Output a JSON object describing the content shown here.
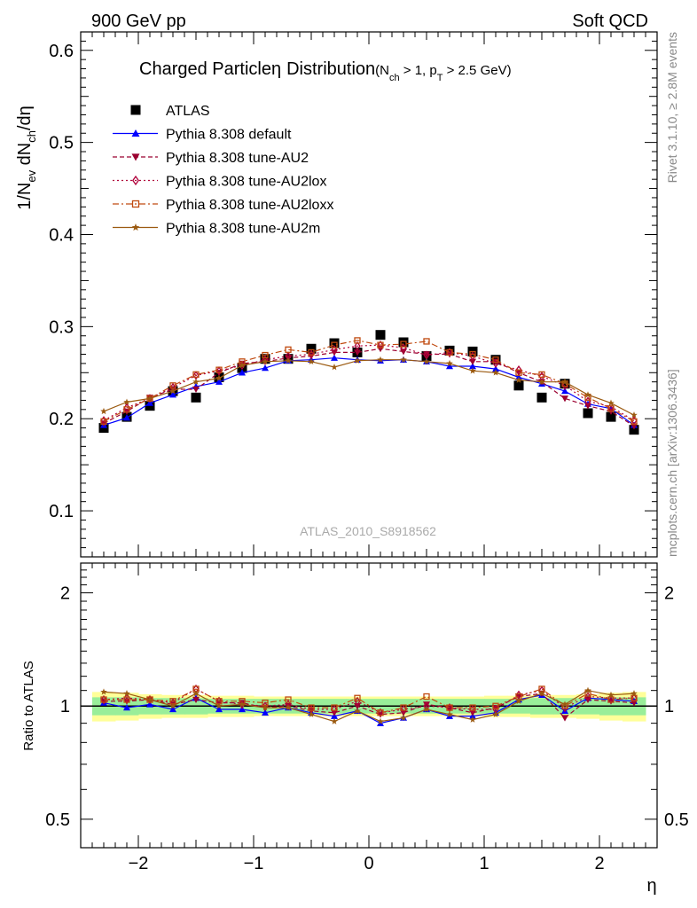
{
  "header": {
    "left": "900 GeV pp",
    "right": "Soft QCD"
  },
  "side": {
    "rivet": "Rivet 3.1.10, ≥ 2.8M events",
    "mcplots": "mcplots.cern.ch [arXiv:1306.3436]"
  },
  "title": {
    "main": "Charged Particle",
    "eta": "η",
    "dist": "Distribution",
    "cond": "(N",
    "cond_sub": "ch",
    "cond2": " > 1, p",
    "cond2_sub": "T",
    "cond3": " > 2.5 GeV)"
  },
  "watermark": "ATLAS_2010_S8918562",
  "ylabel": {
    "a": "1/N",
    "a_sub": "ev",
    "b": " dN",
    "b_sub": "ch",
    "c": "/dη"
  },
  "ratio_ylabel": "Ratio to ATLAS",
  "xlabel": "η",
  "colors": {
    "atlas": "#000000",
    "default": "#0000ff",
    "au2": "#9b0030",
    "au2lox": "#b0003a",
    "au2loxx": "#c04a10",
    "au2m": "#9b5a10",
    "band_inner": "#99ee99",
    "band_outer": "#ffff99"
  },
  "chart_data": [
    {
      "type": "scatter",
      "panel": "main",
      "x": [
        -2.3,
        -2.1,
        -1.9,
        -1.7,
        -1.5,
        -1.3,
        -1.1,
        -0.9,
        -0.7,
        -0.5,
        -0.3,
        -0.1,
        0.1,
        0.3,
        0.5,
        0.7,
        0.9,
        1.1,
        1.3,
        1.5,
        1.7,
        1.9,
        2.1,
        2.3
      ],
      "xlim": [
        -2.5,
        2.5
      ],
      "ylim": [
        0.05,
        0.62
      ],
      "yticks": [
        0.1,
        0.2,
        0.3,
        0.4,
        0.5,
        0.6
      ],
      "ytick_labels": [
        "0.1",
        "0.2",
        "0.3",
        "0.4",
        "0.5",
        "0.6"
      ],
      "legend_position": "top-left",
      "series": [
        {
          "key": "atlas",
          "name": "ATLAS",
          "marker": "square",
          "line": "none",
          "values": [
            0.19,
            0.202,
            0.214,
            0.23,
            0.223,
            0.245,
            0.255,
            0.265,
            0.265,
            0.276,
            0.282,
            0.272,
            0.291,
            0.283,
            0.268,
            0.274,
            0.273,
            0.264,
            0.236,
            0.223,
            0.238,
            0.206,
            0.202,
            0.188
          ]
        },
        {
          "key": "default",
          "name": "Pythia 8.308 default",
          "marker": "triangle-up",
          "line": "solid",
          "values": [
            0.193,
            0.201,
            0.217,
            0.226,
            0.235,
            0.24,
            0.25,
            0.255,
            0.263,
            0.264,
            0.266,
            0.264,
            0.263,
            0.264,
            0.262,
            0.257,
            0.257,
            0.254,
            0.245,
            0.238,
            0.23,
            0.216,
            0.211,
            0.193
          ]
        },
        {
          "key": "au2",
          "name": "Pythia 8.308 tune-AU2",
          "marker": "triangle-down",
          "line": "dashed",
          "values": [
            0.195,
            0.208,
            0.223,
            0.232,
            0.232,
            0.25,
            0.26,
            0.262,
            0.266,
            0.268,
            0.272,
            0.272,
            0.276,
            0.273,
            0.27,
            0.27,
            0.262,
            0.262,
            0.25,
            0.24,
            0.222,
            0.214,
            0.208,
            0.192
          ]
        },
        {
          "key": "au2lox",
          "name": "Pythia 8.308 tune-AU2lox",
          "marker": "diamond-open",
          "line": "dotted",
          "values": [
            0.198,
            0.212,
            0.222,
            0.234,
            0.247,
            0.252,
            0.258,
            0.264,
            0.268,
            0.27,
            0.275,
            0.279,
            0.28,
            0.277,
            0.269,
            0.272,
            0.268,
            0.26,
            0.253,
            0.246,
            0.236,
            0.219,
            0.213,
            0.198
          ]
        },
        {
          "key": "au2loxx",
          "name": "Pythia 8.308 tune-AU2loxx",
          "marker": "square-open",
          "line": "dashdot",
          "values": [
            0.197,
            0.21,
            0.222,
            0.236,
            0.248,
            0.253,
            0.262,
            0.269,
            0.275,
            0.272,
            0.28,
            0.285,
            0.28,
            0.281,
            0.284,
            0.272,
            0.27,
            0.264,
            0.25,
            0.248,
            0.238,
            0.223,
            0.211,
            0.197
          ]
        },
        {
          "key": "au2m",
          "name": "Pythia 8.308 tune-AU2m",
          "marker": "star",
          "line": "solid",
          "values": [
            0.208,
            0.218,
            0.222,
            0.23,
            0.24,
            0.244,
            0.258,
            0.262,
            0.263,
            0.262,
            0.256,
            0.263,
            0.264,
            0.264,
            0.262,
            0.26,
            0.252,
            0.25,
            0.242,
            0.24,
            0.24,
            0.226,
            0.217,
            0.204
          ]
        }
      ]
    },
    {
      "type": "line",
      "panel": "ratio",
      "ylabel": "Ratio to ATLAS",
      "xlabel": "η",
      "x": [
        -2.3,
        -2.1,
        -1.9,
        -1.7,
        -1.5,
        -1.3,
        -1.1,
        -0.9,
        -0.7,
        -0.5,
        -0.3,
        -0.1,
        0.1,
        0.3,
        0.5,
        0.7,
        0.9,
        1.1,
        1.3,
        1.5,
        1.7,
        1.9,
        2.1,
        2.3
      ],
      "xlim": [
        -2.5,
        2.5
      ],
      "xticks": [
        -2,
        -1,
        0,
        1,
        2
      ],
      "xtick_labels": [
        "−2",
        "−1",
        "0",
        "1",
        "2"
      ],
      "ylim": [
        0.42,
        2.4
      ],
      "log_scale": true,
      "yticks": [
        0.5,
        1,
        2
      ],
      "ytick_labels": [
        "0.5",
        "1",
        "2"
      ],
      "band_inner": [
        0.055,
        0.055,
        0.05,
        0.05,
        0.05,
        0.045,
        0.045,
        0.045,
        0.045,
        0.045,
        0.045,
        0.045,
        0.045,
        0.045,
        0.045,
        0.045,
        0.045,
        0.045,
        0.045,
        0.05,
        0.05,
        0.05,
        0.055,
        0.055
      ],
      "band_outer": [
        0.09,
        0.085,
        0.075,
        0.07,
        0.07,
        0.065,
        0.065,
        0.06,
        0.06,
        0.06,
        0.06,
        0.06,
        0.06,
        0.06,
        0.06,
        0.06,
        0.06,
        0.065,
        0.065,
        0.07,
        0.07,
        0.075,
        0.085,
        0.09
      ],
      "series": [
        {
          "key": "default",
          "values": [
            1.02,
            0.99,
            1.01,
            0.98,
            1.05,
            0.98,
            0.98,
            0.96,
            0.99,
            0.96,
            0.94,
            0.97,
            0.9,
            0.93,
            0.98,
            0.94,
            0.94,
            0.96,
            1.04,
            1.07,
            0.97,
            1.05,
            1.04,
            1.03
          ]
        },
        {
          "key": "au2",
          "values": [
            1.03,
            1.03,
            1.04,
            1.01,
            1.04,
            1.02,
            1.02,
            0.99,
            1.0,
            0.97,
            0.96,
            1.0,
            0.95,
            0.96,
            1.01,
            0.99,
            0.96,
            0.99,
            1.06,
            1.08,
            0.93,
            1.04,
            1.03,
            1.02
          ]
        },
        {
          "key": "au2lox",
          "values": [
            1.04,
            1.05,
            1.04,
            1.02,
            1.11,
            1.03,
            1.01,
            1.0,
            1.01,
            0.98,
            0.98,
            1.03,
            0.96,
            0.98,
            1.0,
            0.99,
            0.98,
            0.98,
            1.07,
            1.1,
            0.99,
            1.06,
            1.05,
            1.05
          ]
        },
        {
          "key": "au2loxx",
          "values": [
            1.04,
            1.04,
            1.04,
            1.03,
            1.11,
            1.03,
            1.03,
            1.02,
            1.04,
            0.99,
            0.99,
            1.05,
            0.96,
            0.99,
            1.06,
            0.99,
            0.99,
            1.0,
            1.06,
            1.11,
            1.0,
            1.08,
            1.04,
            1.05
          ]
        },
        {
          "key": "au2m",
          "values": [
            1.09,
            1.08,
            1.04,
            1.0,
            1.08,
            1.0,
            1.01,
            0.99,
            0.99,
            0.95,
            0.91,
            0.97,
            0.91,
            0.93,
            0.98,
            0.95,
            0.92,
            0.95,
            1.03,
            1.08,
            1.01,
            1.1,
            1.07,
            1.08
          ]
        }
      ]
    }
  ]
}
